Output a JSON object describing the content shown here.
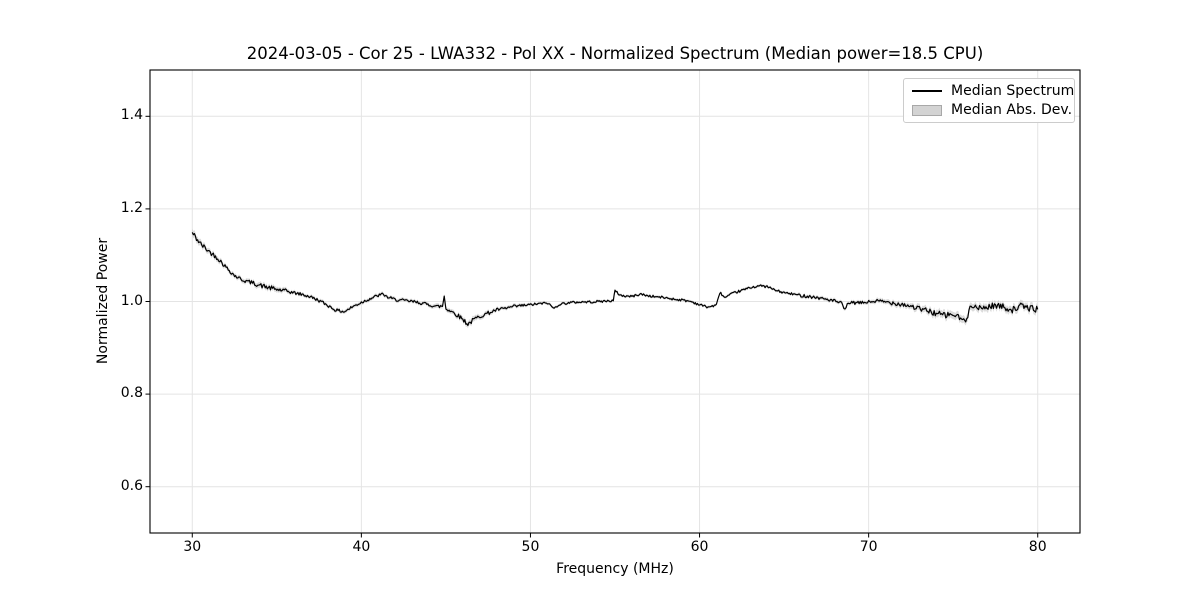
{
  "figure": {
    "title": "2024-03-05 - Cor 25 - LWA332 - Pol XX - Normalized Spectrum (Median power=18.5 CPU)"
  },
  "chart_data": {
    "type": "line",
    "title": "2024-03-05 - Cor 25 - LWA332 - Pol XX - Normalized Spectrum (Median power=18.5 CPU)",
    "xlabel": "Frequency (MHz)",
    "ylabel": "Normalized Power",
    "xlim": [
      27.5,
      82.5
    ],
    "ylim": [
      0.5,
      1.5
    ],
    "xticks": [
      30,
      40,
      50,
      60,
      70,
      80
    ],
    "yticks": [
      0.6,
      0.8,
      1.0,
      1.2,
      1.4
    ],
    "grid": true,
    "legend": {
      "position": "upper right",
      "entries": [
        {
          "label": "Median Spectrum",
          "marker": "line",
          "color": "#000000"
        },
        {
          "label": "Median Abs. Dev.",
          "marker": "patch",
          "fill": "#d3d3d3",
          "edge": "#a8a8a8"
        }
      ]
    },
    "series": [
      {
        "name": "Median Spectrum",
        "x": [
          30.0,
          30.5,
          31.0,
          31.5,
          32.0,
          32.5,
          33.0,
          33.5,
          34.0,
          34.5,
          35.0,
          35.5,
          36.0,
          36.5,
          37.0,
          37.5,
          38.0,
          38.5,
          39.0,
          39.5,
          40.0,
          40.5,
          41.0,
          41.3,
          41.5,
          42.0,
          42.5,
          43.0,
          43.5,
          44.0,
          44.5,
          44.8,
          44.9,
          45.0,
          45.5,
          46.0,
          46.3,
          46.7,
          47.0,
          47.5,
          48.0,
          48.5,
          49.0,
          49.5,
          50.0,
          50.5,
          51.0,
          51.4,
          51.7,
          52.0,
          52.5,
          53.0,
          53.5,
          54.0,
          54.5,
          54.9,
          55.0,
          55.3,
          55.5,
          56.0,
          56.5,
          57.0,
          57.5,
          58.0,
          58.5,
          59.0,
          59.5,
          60.0,
          60.5,
          61.0,
          61.2,
          61.5,
          62.0,
          62.5,
          63.0,
          63.5,
          64.0,
          64.5,
          65.0,
          65.5,
          66.0,
          66.5,
          67.0,
          67.5,
          68.0,
          68.4,
          68.6,
          68.8,
          69.0,
          69.5,
          70.0,
          70.5,
          71.0,
          71.5,
          72.0,
          72.5,
          73.0,
          73.5,
          74.0,
          74.5,
          75.0,
          75.5,
          75.8,
          76.0,
          76.5,
          77.0,
          77.5,
          78.0,
          78.5,
          79.0,
          79.5,
          80.0
        ],
        "y": [
          1.148,
          1.124,
          1.108,
          1.094,
          1.074,
          1.056,
          1.046,
          1.041,
          1.035,
          1.03,
          1.026,
          1.023,
          1.019,
          1.015,
          1.01,
          1.002,
          0.992,
          0.981,
          0.978,
          0.989,
          0.998,
          1.006,
          1.013,
          1.016,
          1.01,
          1.004,
          1.002,
          1.0,
          0.997,
          0.993,
          0.989,
          0.99,
          1.012,
          0.985,
          0.975,
          0.962,
          0.951,
          0.962,
          0.968,
          0.975,
          0.982,
          0.985,
          0.989,
          0.991,
          0.993,
          0.995,
          0.997,
          0.985,
          0.994,
          0.996,
          0.998,
          0.999,
          0.999,
          1.0,
          1.001,
          1.002,
          1.023,
          1.014,
          1.012,
          1.011,
          1.016,
          1.012,
          1.01,
          1.008,
          1.005,
          1.003,
          1.0,
          0.993,
          0.988,
          0.992,
          1.02,
          1.008,
          1.018,
          1.024,
          1.03,
          1.034,
          1.032,
          1.024,
          1.019,
          1.016,
          1.013,
          1.011,
          1.008,
          1.005,
          1.001,
          0.996,
          0.981,
          0.998,
          0.997,
          0.997,
          0.999,
          1.001,
          0.999,
          0.997,
          0.994,
          0.99,
          0.984,
          0.98,
          0.974,
          0.97,
          0.972,
          0.962,
          0.956,
          0.996,
          0.984,
          0.988,
          0.992,
          0.988,
          0.982,
          0.99,
          0.986,
          0.983
        ]
      },
      {
        "name": "Median Abs. Dev.",
        "band_halfwidth": [
          0.008,
          0.007,
          0.006,
          0.006,
          0.005,
          0.005,
          0.005,
          0.005,
          0.006,
          0.006,
          0.006,
          0.005,
          0.004,
          0.004,
          0.004,
          0.004,
          0.004,
          0.004,
          0.004,
          0.004,
          0.004,
          0.004,
          0.004,
          0.004,
          0.004,
          0.004,
          0.004,
          0.004,
          0.004,
          0.004,
          0.005,
          0.005,
          0.005,
          0.005,
          0.005,
          0.006,
          0.006,
          0.006,
          0.005,
          0.005,
          0.004,
          0.004,
          0.004,
          0.004,
          0.003,
          0.003,
          0.003,
          0.003,
          0.003,
          0.003,
          0.003,
          0.003,
          0.003,
          0.003,
          0.003,
          0.003,
          0.003,
          0.003,
          0.003,
          0.003,
          0.003,
          0.003,
          0.003,
          0.003,
          0.003,
          0.003,
          0.003,
          0.003,
          0.003,
          0.003,
          0.003,
          0.003,
          0.003,
          0.003,
          0.003,
          0.003,
          0.003,
          0.003,
          0.003,
          0.003,
          0.004,
          0.004,
          0.004,
          0.004,
          0.004,
          0.004,
          0.004,
          0.004,
          0.004,
          0.004,
          0.004,
          0.005,
          0.005,
          0.006,
          0.006,
          0.006,
          0.007,
          0.007,
          0.008,
          0.008,
          0.008,
          0.008,
          0.008,
          0.008,
          0.008,
          0.008,
          0.008,
          0.008,
          0.008,
          0.008,
          0.008,
          0.008
        ]
      }
    ],
    "style": {
      "line_color": "#000000",
      "line_width": 1.2,
      "band_color": "#bfbfbf",
      "band_opacity": 0.55,
      "grid_color": "#e4e4e4",
      "spine_color": "#000000",
      "noise_scale": 0.85,
      "noise_seed": 42,
      "substep_mhz": 0.0625
    }
  }
}
